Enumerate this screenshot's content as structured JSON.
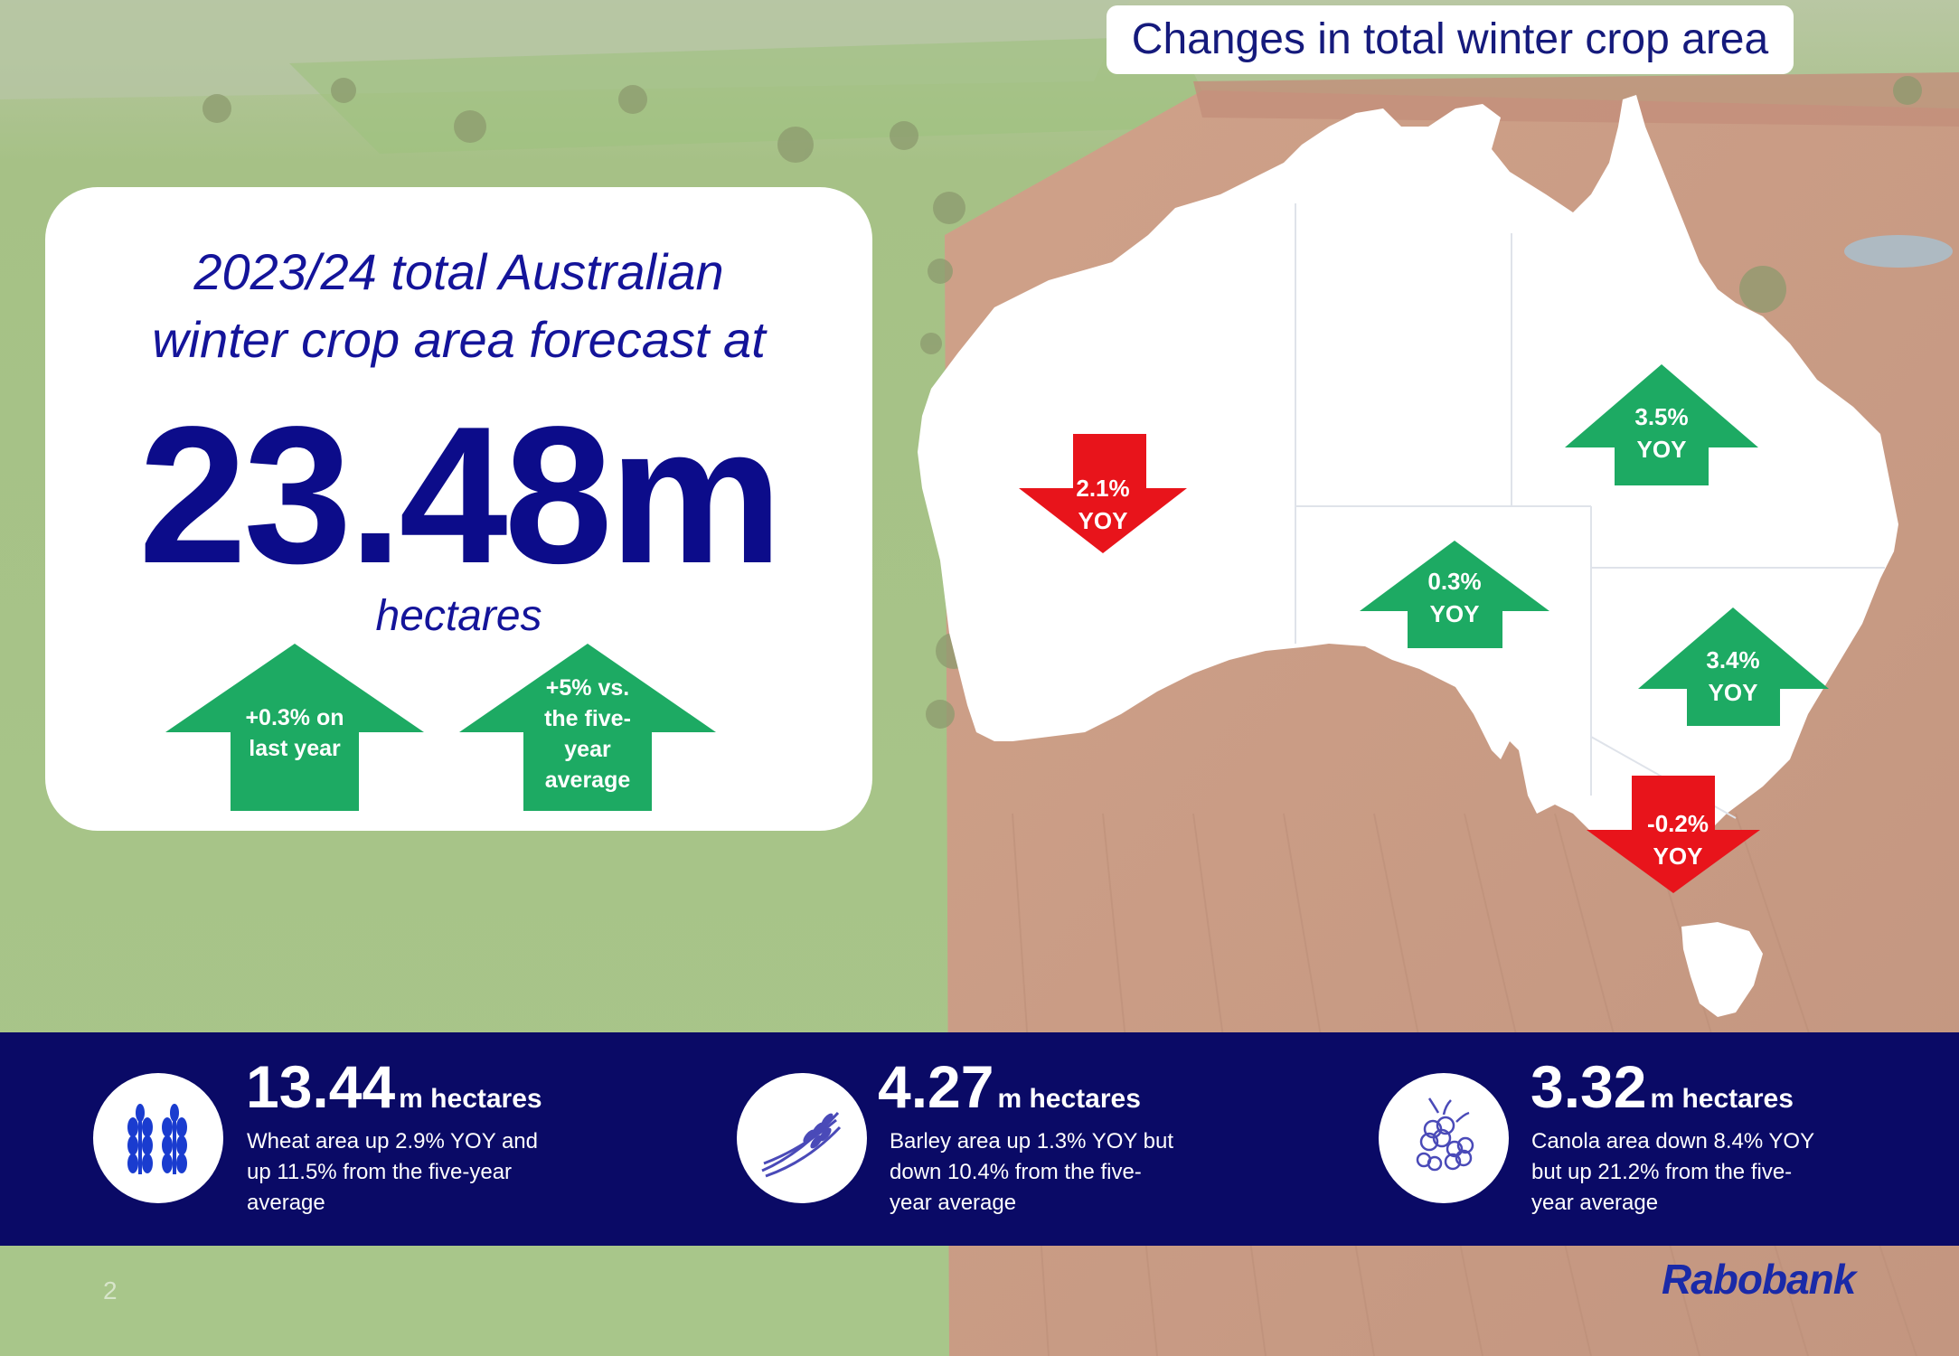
{
  "headline": {
    "line1": "2023/24 total Australian",
    "line2": "winter crop area forecast at",
    "figure": "23.48m",
    "unit": "hectares",
    "arrow_last_year": [
      "+0.3% on",
      "last year"
    ],
    "arrow_five_year": [
      "+5% vs.",
      "the five-",
      "year",
      "average"
    ]
  },
  "map": {
    "title": "Changes in total winter crop area",
    "states": [
      {
        "name": "wa",
        "change": "2.1%",
        "label": "YOY",
        "direction": "down"
      },
      {
        "name": "qld",
        "change": "3.5%",
        "label": "YOY",
        "direction": "up"
      },
      {
        "name": "sa",
        "change": "0.3%",
        "label": "YOY",
        "direction": "up"
      },
      {
        "name": "nsw",
        "change": "3.4%",
        "label": "YOY",
        "direction": "up"
      },
      {
        "name": "vic",
        "change": "-0.2%",
        "label": "YOY",
        "direction": "down"
      }
    ]
  },
  "crops": [
    {
      "icon": "wheat-icon",
      "value": "13.44",
      "unit": "m hectares",
      "description": [
        "Wheat area up 2.9% YOY and",
        "up 11.5% from the five-year",
        "average"
      ]
    },
    {
      "icon": "barley-icon",
      "value": "4.27",
      "unit": "m hectares",
      "description": [
        "Barley area up 1.3% YOY but",
        "down 10.4% from the five-",
        "year average"
      ]
    },
    {
      "icon": "canola-icon",
      "value": "3.32",
      "unit": "m hectares",
      "description": [
        "Canola area down 8.4% YOY",
        "but up 21.2% from the five-",
        "year average"
      ]
    }
  ],
  "footer": {
    "page_number": "2",
    "brand": "Rabobank"
  },
  "colors": {
    "navy": "#0a0a66",
    "headline_blue": "#14149a",
    "up_green": "#1daa63",
    "down_red": "#e8141b",
    "field_green": "#a9c78b",
    "soil": "#c99a80"
  }
}
